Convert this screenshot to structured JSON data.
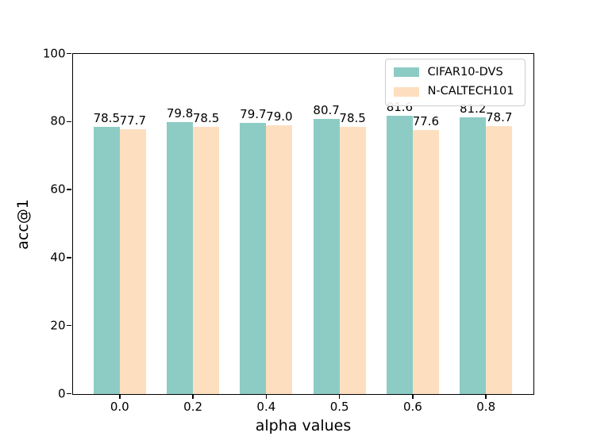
{
  "chart_data": {
    "type": "bar",
    "title": "",
    "xlabel": "alpha values",
    "ylabel": "acc@1",
    "categories": [
      "0.0",
      "0.2",
      "0.4",
      "0.5",
      "0.6",
      "0.8"
    ],
    "series": [
      {
        "name": "CIFAR10-DVS",
        "color": "#8DCCC5",
        "values": [
          78.5,
          79.8,
          79.7,
          80.7,
          81.6,
          81.2
        ]
      },
      {
        "name": "N-CALTECH101",
        "color": "#FDDFC0",
        "values": [
          77.7,
          78.5,
          79.0,
          78.5,
          77.6,
          78.7
        ]
      }
    ],
    "ylim": [
      0,
      100
    ],
    "yticks": [
      0,
      20,
      40,
      60,
      80,
      100
    ],
    "grid": false,
    "bar_value_labels": true,
    "value_label_decimals": 1,
    "legend_position": "upper right",
    "background_color": "#ffffff",
    "axis_color": "#000000"
  }
}
